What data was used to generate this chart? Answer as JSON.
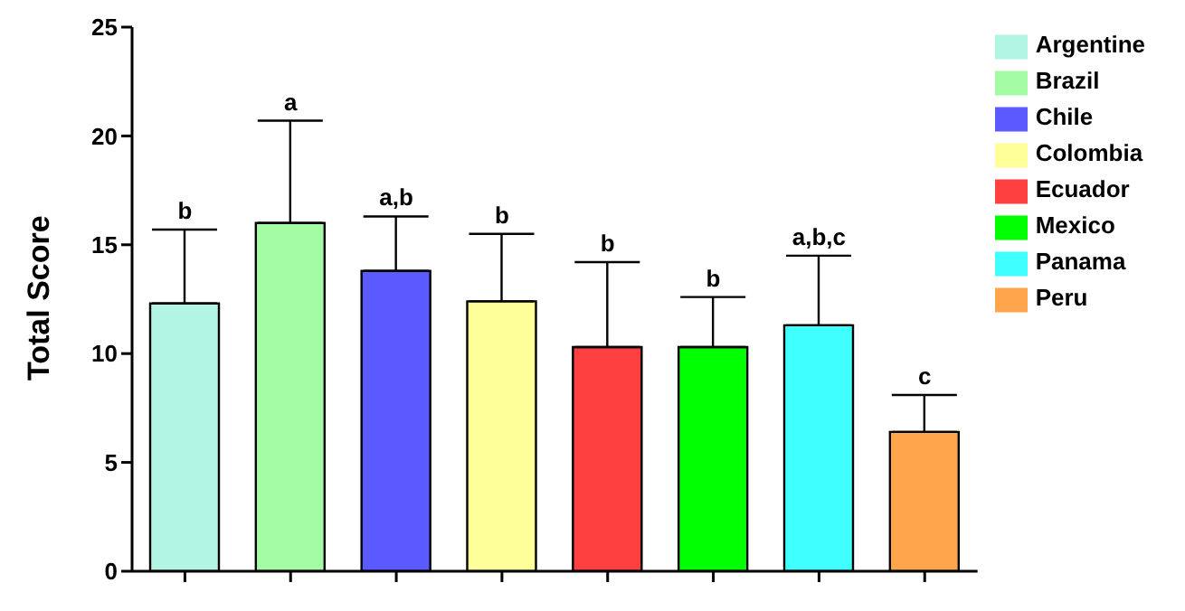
{
  "chart_data": {
    "type": "bar",
    "ylabel": "Total Score",
    "categories": [
      null,
      null,
      null,
      null,
      null,
      null,
      null,
      null
    ],
    "series": [
      {
        "name": "Argentine",
        "color": "#b3f5e3",
        "values": [
          12.3,
          null,
          null,
          null,
          null,
          null,
          null,
          null
        ],
        "errors": [
          [
            12.3,
            15.7
          ],
          null,
          null,
          null,
          null,
          null,
          null,
          null
        ]
      },
      {
        "name": "Brazil",
        "color": "#a3fba3",
        "values": [
          null,
          16.0,
          null,
          null,
          null,
          null,
          null,
          null
        ],
        "errors": [
          null,
          [
            16.0,
            20.7
          ],
          null,
          null,
          null,
          null,
          null,
          null
        ]
      },
      {
        "name": "Chile",
        "color": "#5a5aff",
        "values": [
          null,
          null,
          13.8,
          null,
          null,
          null,
          null,
          null
        ],
        "errors": [
          null,
          null,
          [
            13.8,
            16.3
          ],
          null,
          null,
          null,
          null,
          null
        ]
      },
      {
        "name": "Colombia",
        "color": "#ffff99",
        "values": [
          null,
          null,
          null,
          12.4,
          null,
          null,
          null,
          null
        ],
        "errors": [
          null,
          null,
          null,
          [
            12.4,
            15.5
          ],
          null,
          null,
          null,
          null
        ]
      },
      {
        "name": "Ecuador",
        "color": "#ff4040",
        "values": [
          null,
          null,
          null,
          null,
          10.3,
          null,
          null,
          null
        ],
        "errors": [
          null,
          null,
          null,
          null,
          [
            10.3,
            14.2
          ],
          null,
          null,
          null
        ]
      },
      {
        "name": "Mexico",
        "color": "#00ff00",
        "values": [
          null,
          null,
          null,
          null,
          null,
          10.3,
          null,
          null
        ],
        "errors": [
          null,
          null,
          null,
          null,
          null,
          [
            10.3,
            12.6
          ],
          null,
          null
        ]
      },
      {
        "name": "Panama",
        "color": "#40ffff",
        "values": [
          null,
          null,
          null,
          null,
          null,
          null,
          11.3,
          null
        ],
        "errors": [
          null,
          null,
          null,
          null,
          null,
          null,
          [
            11.3,
            14.5
          ],
          null
        ]
      },
      {
        "name": "Peru",
        "color": "#ffa64d",
        "values": [
          null,
          null,
          null,
          null,
          null,
          null,
          null,
          6.4
        ],
        "errors": [
          null,
          null,
          null,
          null,
          null,
          null,
          null,
          [
            6.4,
            8.1
          ]
        ]
      }
    ],
    "annotations": [
      {
        "text": "b",
        "y": 15.7
      },
      {
        "text": "a",
        "y": 20.7
      },
      {
        "text": "a,b",
        "y": 16.3
      },
      {
        "text": "b",
        "y": 15.5
      },
      {
        "text": "b",
        "y": 14.2
      },
      {
        "text": "b",
        "y": 12.6
      },
      {
        "text": "a,b,c",
        "y": 14.5
      },
      {
        "text": "c",
        "y": 8.1
      }
    ],
    "ylim": [
      0,
      25
    ],
    "yticks": [
      0,
      5,
      10,
      15,
      20,
      25
    ],
    "tick_labels": "y",
    "grid": false,
    "legend": "right"
  }
}
